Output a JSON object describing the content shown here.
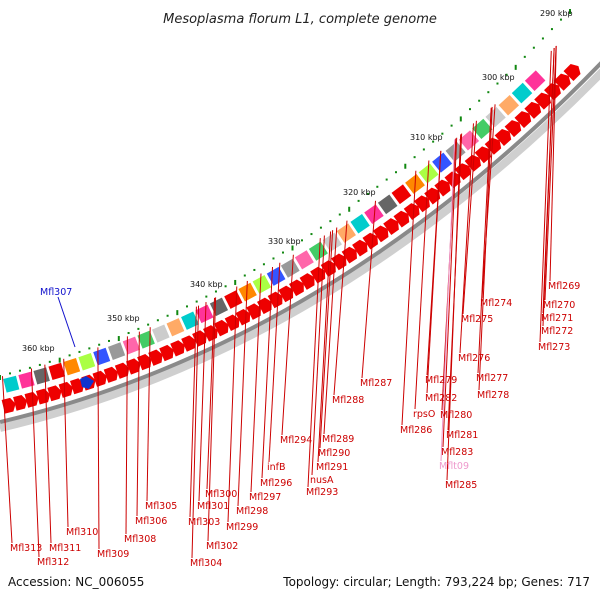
{
  "title": "Mesoplasma florum L1, complete genome",
  "footer": {
    "accession": "Accession: NC_006055",
    "summary": "Topology: circular; Length: 793,224 bp; Genes: 717"
  },
  "colors": {
    "backbone": "#888888",
    "gene": "#ee0000",
    "label": "#cc0000",
    "tick": "#118811",
    "highlight_label": "#1111cc",
    "faded_label": "#ee99cc"
  },
  "scale_labels": [
    "290 kbp",
    "300 kbp",
    "310 kbp",
    "320 kbp",
    "330 kbp",
    "340 kbp",
    "350 kbp",
    "360 kbp"
  ],
  "gene_labels": [
    "Mfl269",
    "Mfl270",
    "Mfl271",
    "Mfl272",
    "Mfl273",
    "Mfl274",
    "Mfl275",
    "Mfl276",
    "Mfl277",
    "Mfl278",
    "Mfl279",
    "Mfl282",
    "rpsO",
    "Mfl280",
    "Mfl281",
    "Mfl283",
    "Mfl286",
    "Mflt09",
    "Mfl285",
    "Mfl287",
    "Mfl288",
    "Mfl289",
    "Mfl290",
    "Mfl291",
    "nusA",
    "Mfl293",
    "Mfl294",
    "infB",
    "Mfl296",
    "Mfl297",
    "Mfl298",
    "Mfl299",
    "Mfl300",
    "Mfl301",
    "Mfl302",
    "Mfl303",
    "Mfl304",
    "Mfl305",
    "Mfl306",
    "Mfl308",
    "Mfl309",
    "Mfl310",
    "Mfl311",
    "Mfl312",
    "Mfl313"
  ],
  "highlight_label": "Mfl307"
}
